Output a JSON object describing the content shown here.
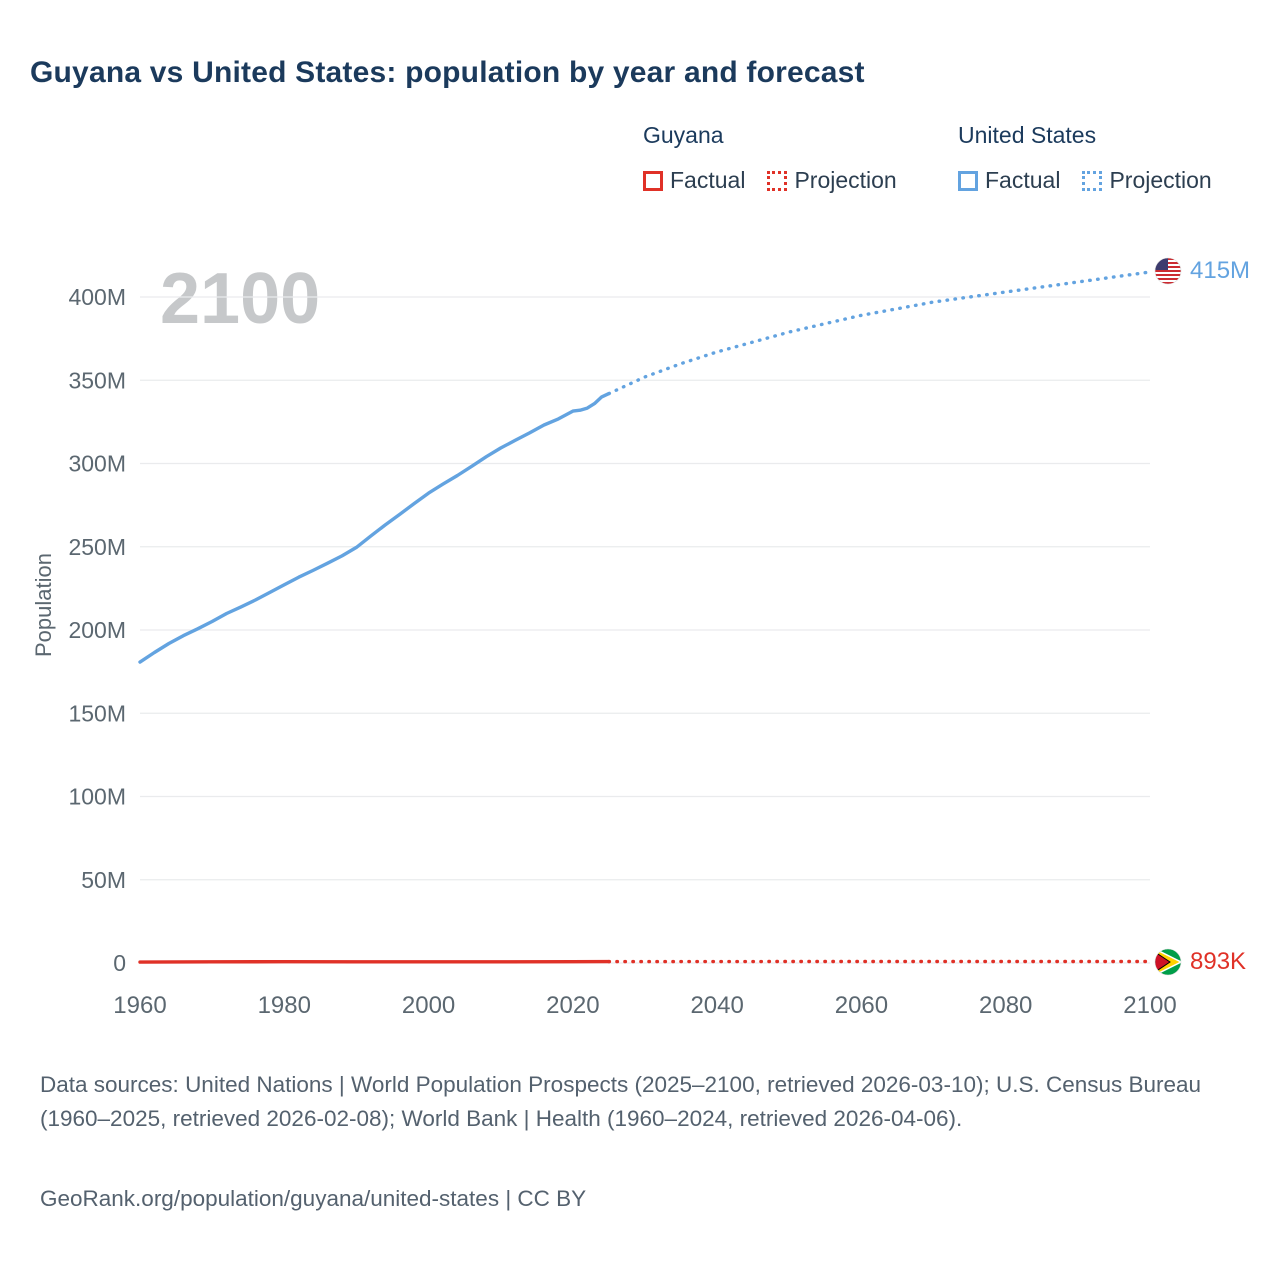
{
  "title": "Guyana vs United States: population by year and forecast",
  "watermark": "2100",
  "legend": {
    "guyana_title": "Guyana",
    "us_title": "United States",
    "factual_label": "Factual",
    "projection_label": "Projection"
  },
  "end_labels": {
    "us": "415M",
    "guyana": "893K"
  },
  "footer": {
    "sources": "Data sources: United Nations | World Population Prospects (2025–2100, retrieved 2026-03-10); U.S. Census Bureau (1960–2025, retrieved 2026-02-08); World Bank | Health (1960–2024, retrieved 2026-04-06).",
    "attribution": "GeoRank.org/population/guyana/united-states | CC BY"
  },
  "colors": {
    "guyana": "#e03127",
    "us": "#63a3e0",
    "grid": "#eaebed",
    "tick": "#5b6770",
    "title": "#1b3a5c",
    "watermark": "#c6c8ca"
  },
  "chart_data": {
    "type": "line",
    "title": "Guyana vs United States: population by year and forecast",
    "xlabel": "",
    "ylabel": "Population",
    "x_ticks": [
      1960,
      1980,
      2000,
      2020,
      2040,
      2060,
      2080,
      2100
    ],
    "y_ticks": [
      {
        "value_millions": 0,
        "label": "0"
      },
      {
        "value_millions": 50,
        "label": "50M"
      },
      {
        "value_millions": 100,
        "label": "100M"
      },
      {
        "value_millions": 150,
        "label": "150M"
      },
      {
        "value_millions": 200,
        "label": "200M"
      },
      {
        "value_millions": 250,
        "label": "250M"
      },
      {
        "value_millions": 300,
        "label": "300M"
      },
      {
        "value_millions": 350,
        "label": "350M"
      },
      {
        "value_millions": 400,
        "label": "400M"
      }
    ],
    "xlim": [
      1960,
      2100
    ],
    "ylim_millions": [
      0,
      428
    ],
    "grid": true,
    "legend_position": "top-right",
    "series": [
      {
        "name": "United States Factual",
        "style": "solid",
        "color_key": "us",
        "points_millions": [
          [
            1960,
            180.7
          ],
          [
            1962,
            186.5
          ],
          [
            1964,
            191.9
          ],
          [
            1966,
            196.6
          ],
          [
            1968,
            200.7
          ],
          [
            1970,
            205.1
          ],
          [
            1972,
            209.9
          ],
          [
            1974,
            213.9
          ],
          [
            1976,
            218.0
          ],
          [
            1978,
            222.6
          ],
          [
            1980,
            227.2
          ],
          [
            1982,
            231.7
          ],
          [
            1984,
            235.8
          ],
          [
            1986,
            240.1
          ],
          [
            1988,
            244.5
          ],
          [
            1990,
            249.6
          ],
          [
            1992,
            256.5
          ],
          [
            1994,
            263.1
          ],
          [
            1996,
            269.4
          ],
          [
            1998,
            275.9
          ],
          [
            2000,
            282.2
          ],
          [
            2002,
            287.6
          ],
          [
            2004,
            292.8
          ],
          [
            2006,
            298.4
          ],
          [
            2008,
            304.1
          ],
          [
            2010,
            309.3
          ],
          [
            2012,
            313.9
          ],
          [
            2014,
            318.4
          ],
          [
            2016,
            323.1
          ],
          [
            2018,
            326.8
          ],
          [
            2020,
            331.5
          ],
          [
            2021,
            332.0
          ],
          [
            2022,
            333.3
          ],
          [
            2023,
            336.0
          ],
          [
            2024,
            340.0
          ],
          [
            2025,
            342.0
          ]
        ]
      },
      {
        "name": "United States Projection",
        "style": "dotted",
        "color_key": "us",
        "points_millions": [
          [
            2025,
            342.0
          ],
          [
            2030,
            352
          ],
          [
            2035,
            360
          ],
          [
            2040,
            367
          ],
          [
            2045,
            373
          ],
          [
            2050,
            379
          ],
          [
            2055,
            384
          ],
          [
            2060,
            389
          ],
          [
            2065,
            393
          ],
          [
            2070,
            397
          ],
          [
            2075,
            400
          ],
          [
            2080,
            403
          ],
          [
            2085,
            406
          ],
          [
            2090,
            409
          ],
          [
            2095,
            412
          ],
          [
            2100,
            415
          ]
        ]
      },
      {
        "name": "Guyana Factual",
        "style": "solid",
        "color_key": "guyana",
        "points_millions": [
          [
            1960,
            0.57
          ],
          [
            1970,
            0.71
          ],
          [
            1980,
            0.76
          ],
          [
            1990,
            0.74
          ],
          [
            2000,
            0.75
          ],
          [
            2010,
            0.75
          ],
          [
            2020,
            0.8
          ],
          [
            2025,
            0.84
          ]
        ]
      },
      {
        "name": "Guyana Projection",
        "style": "dotted",
        "color_key": "guyana",
        "points_millions": [
          [
            2025,
            0.84
          ],
          [
            2050,
            0.9
          ],
          [
            2075,
            0.9
          ],
          [
            2100,
            0.893
          ]
        ]
      }
    ],
    "end_values": [
      {
        "series": "United States",
        "year": 2100,
        "label": "415M"
      },
      {
        "series": "Guyana",
        "year": 2100,
        "label": "893K"
      }
    ]
  }
}
